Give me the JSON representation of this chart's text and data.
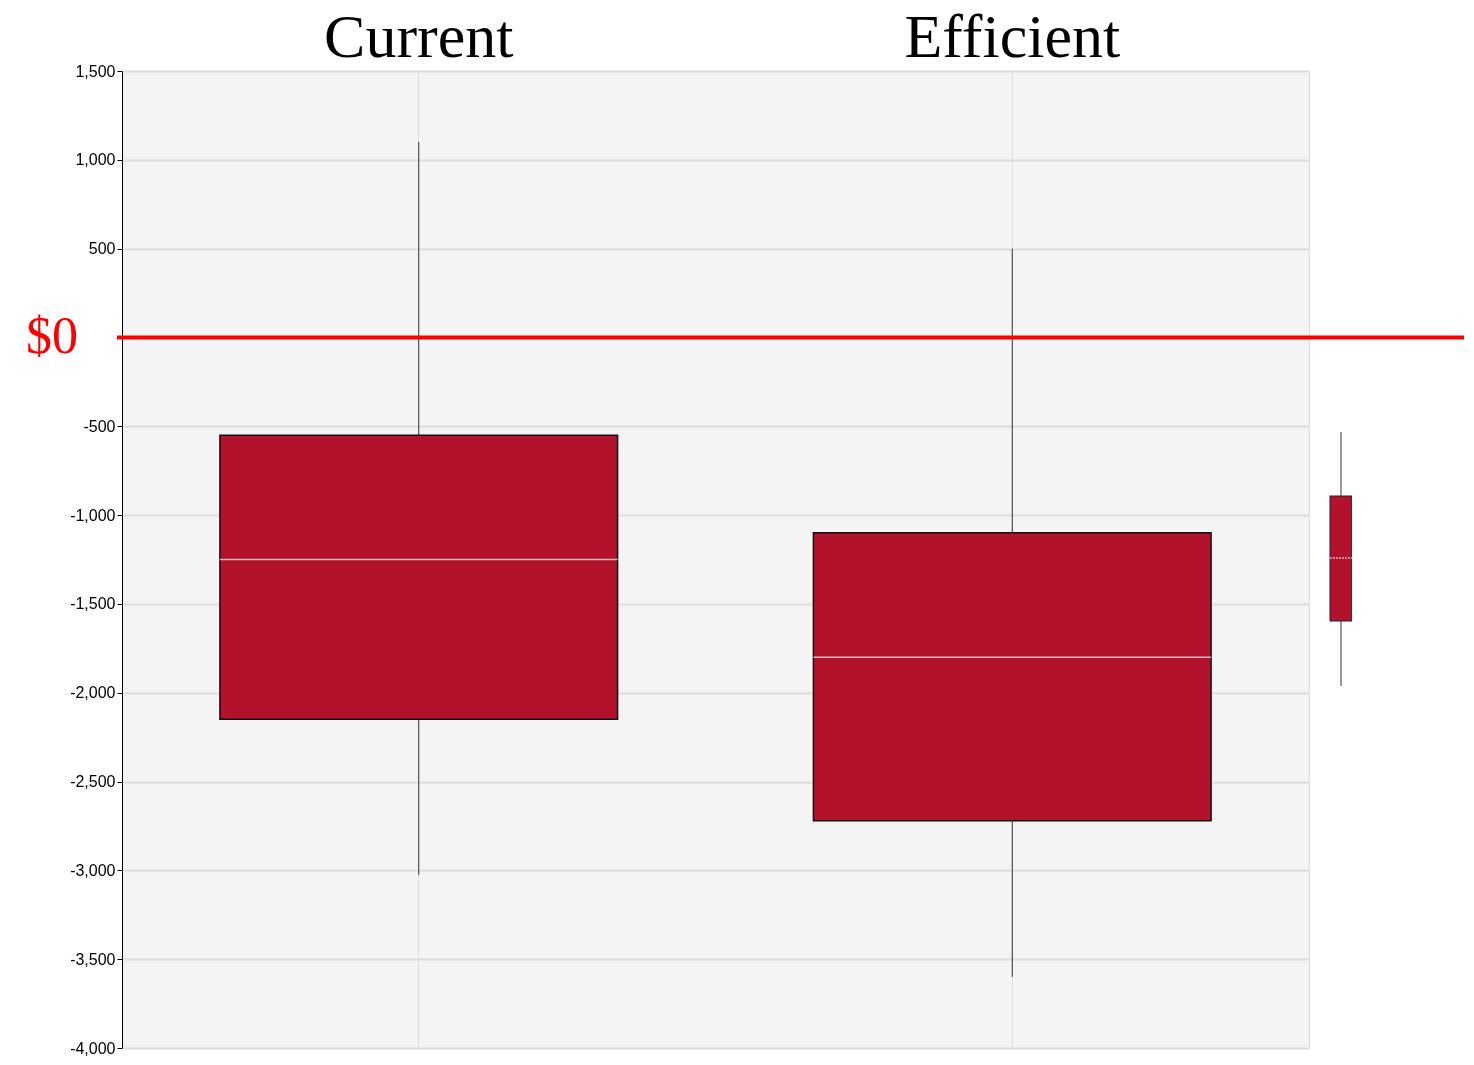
{
  "chart_data": {
    "type": "box",
    "categories": [
      "Current",
      "Efficient"
    ],
    "series": [
      {
        "color": "#b3122d",
        "boxes": [
          {
            "low": -3025,
            "q1": -2150,
            "median": -1250,
            "q3": -550,
            "high": 1100
          },
          {
            "low": -3600,
            "q1": -2720,
            "median": -1800,
            "q3": -1100,
            "high": 500
          }
        ]
      }
    ],
    "ylim": [
      -4000,
      1500
    ],
    "yticks": [
      {
        "value": -4000,
        "label": "-4,000"
      },
      {
        "value": -3500,
        "label": "-3,500"
      },
      {
        "value": -3000,
        "label": "-3,000"
      },
      {
        "value": -2500,
        "label": "-2,500"
      },
      {
        "value": -2000,
        "label": "-2,000"
      },
      {
        "value": -1500,
        "label": "-1,500"
      },
      {
        "value": -1000,
        "label": "-1,000"
      },
      {
        "value": -500,
        "label": "-500"
      },
      {
        "value": 0,
        "label": null
      },
      {
        "value": 500,
        "label": "500"
      },
      {
        "value": 1000,
        "label": "1,000"
      },
      {
        "value": 1500,
        "label": "1,500"
      }
    ],
    "ref_lines": [
      {
        "axis": "y",
        "value": 0,
        "label": "$0",
        "color": "#ff0000"
      }
    ],
    "grid": true
  }
}
